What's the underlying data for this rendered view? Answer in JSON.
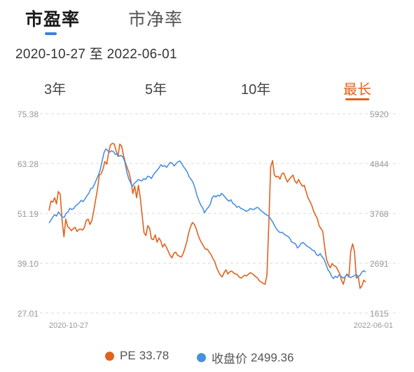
{
  "tabs": [
    {
      "label": "市盈率",
      "active": true
    },
    {
      "label": "市净率",
      "active": false
    }
  ],
  "date_range": "2020-10-27 至 2022-06-01",
  "range_tabs": [
    {
      "label": "3年",
      "selected": false
    },
    {
      "label": "5年",
      "selected": false
    },
    {
      "label": "10年",
      "selected": false
    },
    {
      "label": "最长",
      "selected": true
    }
  ],
  "colors": {
    "pe": "#e0621f",
    "price": "#4a90dc",
    "accent": "#e0621f",
    "tab_indicator": "#3a84dc"
  },
  "chart_data": {
    "type": "line",
    "x_start_label": "2020-10-27",
    "x_end_label": "2022-06-01",
    "y_left_ticks": [
      "75.38",
      "63.28",
      "51.19",
      "39.10",
      "27.01"
    ],
    "y_right_ticks": [
      "5920",
      "4844",
      "3768",
      "2691",
      "1615"
    ],
    "y_left_range": [
      27.01,
      75.38
    ],
    "y_right_range": [
      1615,
      5920
    ],
    "grid": "horizontal-dashed",
    "series": [
      {
        "name": "PE",
        "axis": "left",
        "values": [
          51.9,
          54.2,
          53.9,
          55.0,
          53.5,
          56.5,
          55.8,
          49.5,
          45.5,
          49.8,
          48.0,
          47.6,
          47.0,
          47.5,
          47.8,
          46.8,
          47.3,
          47.4,
          47.1,
          47.8,
          49.5,
          49.8,
          48.5,
          49.5,
          51.8,
          54.5,
          57.0,
          60.5,
          60.8,
          62.0,
          63.8,
          63.1,
          66.0,
          67.8,
          68.2,
          68.0,
          66.4,
          65.0,
          68.0,
          67.5,
          65.2,
          63.5,
          62.2,
          61.0,
          59.0,
          56.0,
          57.8,
          55.0,
          58.0,
          54.9,
          50.8,
          46.5,
          45.8,
          48.2,
          47.6,
          45.0,
          44.8,
          46.0,
          44.2,
          45.2,
          44.5,
          43.0,
          43.8,
          43.0,
          42.0,
          41.0,
          40.4,
          41.5,
          41.8,
          41.0,
          40.8,
          40.6,
          41.4,
          42.8,
          44.4,
          46.5,
          48.0,
          49.0,
          48.5,
          47.5,
          46.0,
          44.8,
          44.0,
          43.2,
          42.5,
          42.5,
          41.8,
          41.2,
          40.2,
          39.5,
          38.0,
          37.0,
          36.2,
          35.8,
          36.8,
          37.5,
          36.5,
          37.0,
          37.2,
          36.8,
          36.5,
          36.4,
          35.8,
          35.5,
          35.8,
          36.2,
          36.0,
          36.4,
          36.8,
          36.6,
          36.2,
          35.8,
          35.5,
          34.8,
          34.5,
          34.2,
          34.0,
          36.2,
          48.5,
          62.5,
          64.0,
          60.5,
          60.0,
          60.2,
          59.5,
          60.8,
          61.0,
          59.8,
          58.8,
          59.5,
          60.0,
          60.5,
          59.0,
          58.5,
          59.4,
          58.5,
          57.8,
          58.0,
          56.5,
          55.0,
          54.2,
          53.2,
          51.8,
          50.8,
          50.0,
          48.2,
          47.5,
          46.8,
          43.0,
          40.0,
          38.8,
          38.0,
          39.0,
          38.5,
          38.3,
          37.5,
          36.6,
          35.0,
          34.0,
          35.8,
          36.5,
          35.8,
          42.0,
          43.8,
          42.0,
          35.5,
          35.8,
          33.0,
          33.6,
          35.0,
          34.5
        ],
        "current_value": "33.78"
      },
      {
        "name": "收盘价",
        "axis": "right",
        "values": [
          3560,
          3620,
          3690,
          3740,
          3710,
          3800,
          3740,
          3690,
          3680,
          3770,
          3800,
          3880,
          3850,
          3870,
          3930,
          3960,
          4000,
          4050,
          4020,
          4080,
          4150,
          4200,
          4300,
          4320,
          4400,
          4500,
          4590,
          4710,
          4900,
          5080,
          5160,
          5120,
          5090,
          5120,
          5100,
          5040,
          5060,
          5000,
          5020,
          4980,
          4880,
          4660,
          4520,
          4430,
          4350,
          4420,
          4450,
          4500,
          4480,
          4470,
          4520,
          4500,
          4570,
          4560,
          4520,
          4600,
          4650,
          4700,
          4750,
          4820,
          4780,
          4800,
          4760,
          4820,
          4870,
          4850,
          4790,
          4840,
          4880,
          4900,
          4840,
          4770,
          4720,
          4650,
          4550,
          4500,
          4430,
          4310,
          4160,
          4050,
          3950,
          3890,
          3780,
          3850,
          3900,
          3960,
          4100,
          4150,
          4120,
          4160,
          4140,
          4200,
          4160,
          4110,
          4060,
          4030,
          4060,
          3980,
          3960,
          3900,
          3920,
          3880,
          3860,
          3840,
          3810,
          3830,
          3870,
          3860,
          3850,
          3880,
          3900,
          3860,
          3820,
          3790,
          3750,
          3730,
          3700,
          3640,
          3580,
          3500,
          3430,
          3380,
          3350,
          3360,
          3320,
          3290,
          3270,
          3230,
          3150,
          3130,
          3110,
          3020,
          3060,
          3120,
          3140,
          3100,
          3060,
          3040,
          3010,
          2970,
          2960,
          2880,
          2850,
          2900,
          2830,
          2780,
          2670,
          2560,
          2500,
          2410,
          2360,
          2410,
          2380,
          2440,
          2410,
          2370,
          2390,
          2450,
          2400,
          2380,
          2400,
          2420,
          2450,
          2400,
          2430,
          2500,
          2530,
          2500
        ],
        "current_value": "2499.36"
      }
    ]
  }
}
